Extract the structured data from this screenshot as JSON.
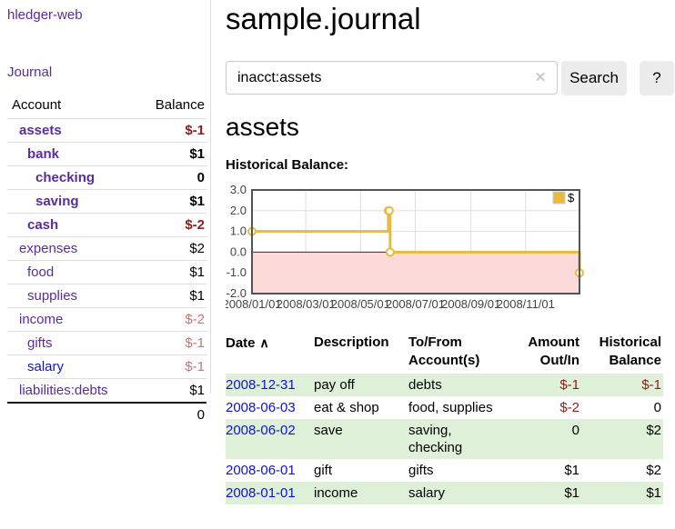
{
  "colors": {
    "link_purple": "#5a2c9e",
    "link_blue": "#0f10e0",
    "negative_strong": "#941a1a",
    "negative_muted": "#c27878",
    "row_stripe_green": "#dff0d8",
    "button_gray": "#ececec",
    "border_light": "#dddddd",
    "chart_line_gold": "#e6bb3e",
    "chart_negative_region": "#fcdada",
    "chart_zero_line": "#990000",
    "chart_grid": "#e0e0e0",
    "chart_border": "#545454",
    "chart_tick_text": "#444444"
  },
  "header": {
    "brand": "hledger-web",
    "nav_journal": "Journal"
  },
  "sidebar": {
    "account_header": "Account",
    "balance_header": "Balance",
    "accounts": [
      {
        "name": "assets",
        "balance": "$-1",
        "depth": 1,
        "bold": true,
        "link": "purple",
        "balance_style": "neg-strong"
      },
      {
        "name": "bank",
        "balance": "$1",
        "depth": 2,
        "bold": true,
        "link": "purple",
        "balance_style": "pos"
      },
      {
        "name": "checking",
        "balance": "0",
        "depth": 3,
        "bold": true,
        "link": "purple",
        "balance_style": "pos"
      },
      {
        "name": "saving",
        "balance": "$1",
        "depth": 3,
        "bold": true,
        "link": "purple",
        "balance_style": "pos"
      },
      {
        "name": "cash",
        "balance": "$-2",
        "depth": 2,
        "bold": true,
        "link": "purple",
        "balance_style": "neg-strong"
      },
      {
        "name": "expenses",
        "balance": "$2",
        "depth": 1,
        "bold": false,
        "link": "purple",
        "balance_style": "pos"
      },
      {
        "name": "food",
        "balance": "$1",
        "depth": 2,
        "bold": false,
        "link": "purple",
        "balance_style": "pos"
      },
      {
        "name": "supplies",
        "balance": "$1",
        "depth": 2,
        "bold": false,
        "link": "purple",
        "balance_style": "pos"
      },
      {
        "name": "income",
        "balance": "$-2",
        "depth": 1,
        "bold": false,
        "link": "purple",
        "balance_style": "neg-muted"
      },
      {
        "name": "gifts",
        "balance": "$-1",
        "depth": 2,
        "bold": false,
        "link": "purple",
        "balance_style": "neg-muted"
      },
      {
        "name": "salary",
        "balance": "$-1",
        "depth": 2,
        "bold": false,
        "link": "blue",
        "balance_style": "neg-muted"
      },
      {
        "name": "liabilities:debts",
        "balance": "$1",
        "depth": 1,
        "bold": false,
        "link": "purple",
        "balance_style": "pos"
      }
    ],
    "total": "0"
  },
  "main": {
    "title": "sample.journal",
    "search": {
      "value": "inacct:assets",
      "clear_icon": "✕",
      "search_button": "Search",
      "help_button": "?"
    },
    "account_heading": "assets",
    "chart_title": "Historical Balance:"
  },
  "chart_data": {
    "type": "line",
    "step": true,
    "title": "Historical Balance",
    "series": [
      {
        "name": "$",
        "points": [
          {
            "date": "2008-01-01",
            "value": 1
          },
          {
            "date": "2008-06-01",
            "value": 2
          },
          {
            "date": "2008-06-02",
            "value": 2
          },
          {
            "date": "2008-06-03",
            "value": 0
          },
          {
            "date": "2008-12-31",
            "value": -1
          }
        ]
      }
    ],
    "xlim": [
      "2008-01-01",
      "2008-12-31"
    ],
    "ylim": [
      -2,
      3
    ],
    "x_ticks": [
      "2008/01/01",
      "2008/03/01",
      "2008/05/01",
      "2008/07/01",
      "2008/09/01",
      "2008/11/01"
    ],
    "y_ticks": [
      "3.0",
      "2.0",
      "1.0",
      "0.0",
      "-1.0",
      "-2.0"
    ],
    "legend": {
      "label": "$",
      "position": "top-right"
    },
    "grid": true,
    "negative_region_shaded": true
  },
  "register": {
    "headers": {
      "date": "Date",
      "sort_icon": "∧",
      "description": "Description",
      "accounts": "To/From Account(s)",
      "amount": "Amount Out/In",
      "balance": "Historical Balance"
    },
    "rows": [
      {
        "date": "2008-12-31",
        "description": "pay off",
        "accounts": "debts",
        "amount": "$-1",
        "balance": "$-1",
        "amount_negative": true,
        "balance_negative": true
      },
      {
        "date": "2008-06-03",
        "description": "eat & shop",
        "accounts": "food, supplies",
        "amount": "$-2",
        "balance": "0",
        "amount_negative": true,
        "balance_negative": false
      },
      {
        "date": "2008-06-02",
        "description": "save",
        "accounts": "saving, checking",
        "amount": "0",
        "balance": "$2",
        "amount_negative": false,
        "balance_negative": false
      },
      {
        "date": "2008-06-01",
        "description": "gift",
        "accounts": "gifts",
        "amount": "$1",
        "balance": "$2",
        "amount_negative": false,
        "balance_negative": false
      },
      {
        "date": "2008-01-01",
        "description": "income",
        "accounts": "salary",
        "amount": "$1",
        "balance": "$1",
        "amount_negative": false,
        "balance_negative": false
      }
    ]
  }
}
